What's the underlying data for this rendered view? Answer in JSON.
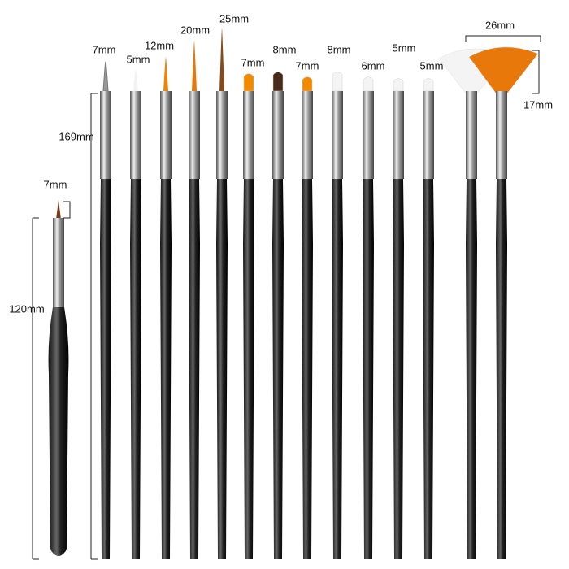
{
  "measurements": [
    {
      "label": "7mm"
    },
    {
      "label": "5mm"
    },
    {
      "label": "12mm"
    },
    {
      "label": "20mm"
    },
    {
      "label": "25mm"
    },
    {
      "label": "7mm"
    },
    {
      "label": "8mm"
    },
    {
      "label": "7mm"
    },
    {
      "label": "8mm"
    },
    {
      "label": "6mm"
    },
    {
      "label": "5mm"
    },
    {
      "label": "5mm"
    },
    {
      "label": "26mm"
    },
    {
      "label": "17mm"
    },
    {
      "label": "169mm"
    },
    {
      "label": "7mm"
    },
    {
      "label": "120mm"
    }
  ]
}
